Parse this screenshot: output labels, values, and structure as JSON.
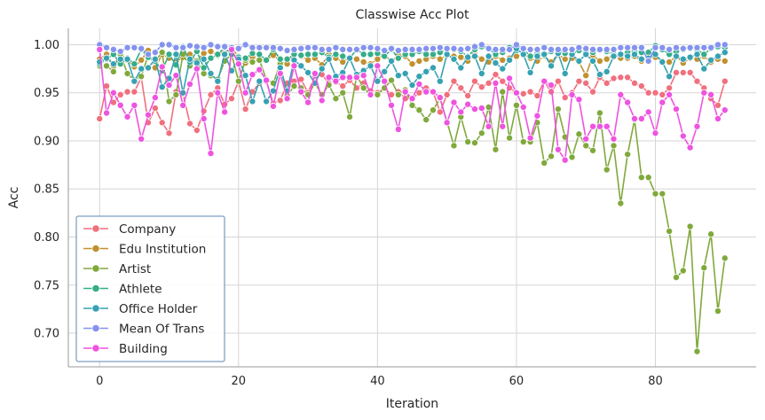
{
  "chart_data": {
    "type": "line",
    "title": "Classwise Acc Plot",
    "xlabel": "Iteration",
    "ylabel": "Acc",
    "xlim": [
      -4.5,
      94.5
    ],
    "ylim": [
      0.665,
      1.017
    ],
    "xticks": [
      0,
      20,
      40,
      60,
      80
    ],
    "yticks": [
      0.7,
      0.75,
      0.8,
      0.85,
      0.9,
      0.95,
      1.0
    ],
    "grid": true,
    "legend_position": "lower-left",
    "x": [
      0,
      1,
      2,
      3,
      4,
      5,
      6,
      7,
      8,
      9,
      10,
      11,
      12,
      13,
      14,
      15,
      16,
      17,
      18,
      19,
      20,
      21,
      22,
      23,
      24,
      25,
      26,
      27,
      28,
      29,
      30,
      31,
      32,
      33,
      34,
      35,
      36,
      37,
      38,
      39,
      40,
      41,
      42,
      43,
      44,
      45,
      46,
      47,
      48,
      49,
      50,
      51,
      52,
      53,
      54,
      55,
      56,
      57,
      58,
      59,
      60,
      61,
      62,
      63,
      64,
      65,
      66,
      67,
      68,
      69,
      70,
      71,
      72,
      73,
      74,
      75,
      76,
      77,
      78,
      79,
      80,
      81,
      82,
      83,
      84,
      85,
      86,
      87,
      88,
      89,
      90
    ],
    "series": [
      {
        "name": "Company",
        "color": "#f0707e",
        "values": [
          0.923,
          0.957,
          0.94,
          0.948,
          0.951,
          0.951,
          0.966,
          0.919,
          0.934,
          0.919,
          0.908,
          0.951,
          0.949,
          0.918,
          0.911,
          0.931,
          0.948,
          0.955,
          0.938,
          0.944,
          0.962,
          0.933,
          0.951,
          0.96,
          0.962,
          0.939,
          0.942,
          0.96,
          0.962,
          0.964,
          0.95,
          0.968,
          0.969,
          0.96,
          0.961,
          0.957,
          0.963,
          0.955,
          0.96,
          0.952,
          0.95,
          0.955,
          0.948,
          0.951,
          0.944,
          0.944,
          0.95,
          0.955,
          0.951,
          0.93,
          0.948,
          0.962,
          0.955,
          0.947,
          0.962,
          0.956,
          0.96,
          0.969,
          0.962,
          0.955,
          0.95,
          0.949,
          0.951,
          0.947,
          0.962,
          0.951,
          0.962,
          0.945,
          0.95,
          0.962,
          0.96,
          0.951,
          0.966,
          0.96,
          0.965,
          0.966,
          0.966,
          0.96,
          0.957,
          0.95,
          0.95,
          0.948,
          0.955,
          0.971,
          0.971,
          0.971,
          0.962,
          0.955,
          0.944,
          0.937,
          0.962
        ]
      },
      {
        "name": "Edu Institution",
        "color": "#c0912f",
        "values": [
          0.985,
          0.99,
          0.978,
          0.99,
          0.984,
          0.977,
          0.984,
          0.994,
          0.976,
          0.99,
          0.986,
          0.982,
          0.987,
          0.99,
          0.983,
          0.991,
          0.993,
          0.989,
          0.994,
          0.996,
          0.988,
          0.981,
          0.987,
          0.985,
          0.984,
          0.989,
          0.983,
          0.98,
          0.992,
          0.988,
          0.984,
          0.986,
          0.979,
          0.99,
          0.986,
          0.982,
          0.987,
          0.985,
          0.982,
          0.98,
          0.985,
          0.99,
          0.982,
          0.989,
          0.988,
          0.98,
          0.983,
          0.985,
          0.988,
          0.985,
          0.989,
          0.988,
          0.987,
          0.983,
          0.99,
          0.985,
          0.982,
          0.988,
          0.984,
          0.986,
          0.988,
          0.99,
          0.986,
          0.983,
          0.988,
          0.982,
          0.99,
          0.985,
          0.986,
          0.982,
          0.968,
          0.989,
          0.983,
          0.985,
          0.99,
          0.986,
          0.986,
          0.988,
          0.983,
          0.986,
          0.987,
          0.983,
          0.982,
          0.988,
          0.981,
          0.986,
          0.985,
          0.988,
          0.982,
          0.985,
          0.983
        ]
      },
      {
        "name": "Artist",
        "color": "#80a93c",
        "values": [
          0.978,
          0.978,
          0.972,
          0.99,
          0.97,
          0.963,
          0.967,
          0.989,
          0.983,
          0.992,
          0.941,
          0.948,
          0.99,
          0.978,
          0.983,
          0.97,
          0.968,
          0.964,
          0.983,
          0.99,
          0.962,
          0.984,
          0.982,
          0.984,
          0.964,
          0.96,
          0.98,
          0.947,
          0.957,
          0.955,
          0.948,
          0.96,
          0.948,
          0.958,
          0.944,
          0.95,
          0.925,
          0.968,
          0.955,
          0.948,
          0.948,
          0.955,
          0.963,
          0.948,
          0.953,
          0.937,
          0.932,
          0.922,
          0.932,
          0.944,
          0.92,
          0.895,
          0.925,
          0.899,
          0.898,
          0.908,
          0.935,
          0.891,
          0.951,
          0.903,
          0.937,
          0.899,
          0.899,
          0.919,
          0.877,
          0.884,
          0.933,
          0.904,
          0.883,
          0.907,
          0.895,
          0.89,
          0.929,
          0.87,
          0.895,
          0.835,
          0.886,
          0.922,
          0.862,
          0.862,
          0.845,
          0.845,
          0.806,
          0.758,
          0.765,
          0.811,
          0.681,
          0.768,
          0.803,
          0.723,
          0.778
        ]
      },
      {
        "name": "Athlete",
        "color": "#34ad88",
        "values": [
          0.98,
          0.985,
          0.99,
          0.98,
          0.986,
          0.98,
          0.995,
          0.987,
          0.983,
          0.973,
          0.99,
          0.979,
          0.998,
          0.982,
          0.993,
          0.976,
          0.986,
          0.99,
          0.997,
          0.99,
          0.987,
          0.986,
          0.991,
          0.99,
          0.984,
          0.995,
          0.985,
          0.985,
          0.99,
          0.989,
          0.99,
          0.99,
          0.992,
          0.987,
          0.99,
          0.988,
          0.986,
          0.995,
          0.99,
          0.99,
          0.991,
          0.988,
          0.995,
          0.986,
          0.99,
          0.99,
          0.993,
          0.99,
          0.99,
          0.992,
          0.995,
          0.995,
          0.993,
          0.988,
          0.995,
          0.998,
          0.996,
          0.99,
          0.992,
          0.997,
          0.994,
          0.995,
          0.988,
          0.991,
          0.989,
          0.993,
          0.995,
          0.991,
          0.99,
          0.994,
          0.992,
          0.992,
          0.995,
          0.993,
          0.99,
          0.99,
          0.992,
          0.994,
          0.992,
          0.992,
          0.999,
          0.995,
          0.99,
          0.993,
          0.995,
          0.996,
          0.995,
          0.99,
          0.996,
          0.998,
          0.997
        ]
      },
      {
        "name": "Office Holder",
        "color": "#36a2b3",
        "values": [
          0.982,
          0.986,
          0.98,
          0.985,
          0.985,
          0.962,
          0.975,
          0.976,
          0.985,
          0.956,
          0.965,
          0.99,
          0.95,
          0.985,
          0.981,
          0.985,
          0.97,
          0.962,
          0.99,
          0.973,
          0.985,
          0.968,
          0.941,
          0.962,
          0.941,
          0.952,
          0.976,
          0.952,
          0.984,
          0.978,
          0.971,
          0.96,
          0.975,
          0.985,
          0.967,
          0.971,
          0.986,
          0.969,
          0.973,
          0.978,
          0.962,
          0.972,
          0.983,
          0.968,
          0.97,
          0.958,
          0.967,
          0.972,
          0.976,
          0.962,
          0.99,
          0.985,
          0.976,
          0.987,
          0.988,
          0.97,
          0.988,
          0.981,
          0.975,
          0.984,
          0.996,
          0.99,
          0.971,
          0.988,
          0.99,
          0.978,
          0.991,
          0.97,
          0.99,
          0.983,
          0.99,
          0.983,
          0.969,
          0.972,
          0.988,
          0.99,
          0.988,
          0.99,
          0.985,
          0.986,
          0.99,
          0.982,
          0.967,
          0.988,
          0.985,
          0.987,
          0.99,
          0.975,
          0.984,
          0.988,
          0.992
        ]
      },
      {
        "name": "Mean Of Trans",
        "color": "#8493ee",
        "values": [
          1.0,
          0.997,
          0.995,
          0.993,
          0.997,
          0.997,
          0.996,
          0.99,
          0.992,
          1.0,
          1.0,
          0.997,
          0.997,
          0.999,
          0.998,
          0.997,
          1.0,
          0.998,
          0.998,
          0.997,
          0.996,
          1.0,
          0.997,
          0.997,
          0.997,
          0.997,
          0.996,
          0.994,
          0.995,
          0.996,
          0.997,
          0.997,
          0.995,
          0.995,
          0.997,
          0.995,
          0.995,
          0.995,
          0.997,
          0.997,
          0.996,
          0.994,
          0.996,
          0.994,
          0.995,
          0.995,
          0.995,
          0.996,
          0.996,
          0.997,
          0.996,
          0.996,
          0.995,
          0.996,
          0.998,
          1.0,
          0.996,
          0.995,
          0.995,
          0.995,
          1.0,
          0.996,
          0.995,
          0.995,
          0.997,
          0.995,
          0.995,
          0.995,
          0.995,
          0.997,
          0.996,
          0.995,
          0.995,
          0.995,
          0.995,
          0.997,
          0.997,
          0.997,
          0.997,
          0.983,
          0.997,
          0.997,
          0.995,
          0.997,
          0.996,
          0.997,
          0.997,
          0.997,
          0.997,
          1.0,
          1.0
        ]
      },
      {
        "name": "Building",
        "color": "#ee54e0",
        "values": [
          0.995,
          0.929,
          0.95,
          0.937,
          0.925,
          0.937,
          0.902,
          0.927,
          0.945,
          0.977,
          0.958,
          0.968,
          0.937,
          0.959,
          0.975,
          0.923,
          0.887,
          0.95,
          0.93,
          0.995,
          0.98,
          0.95,
          0.969,
          0.974,
          0.963,
          0.936,
          0.97,
          0.944,
          0.978,
          0.951,
          0.94,
          0.97,
          0.942,
          0.966,
          0.962,
          0.966,
          0.966,
          0.966,
          0.968,
          0.948,
          0.978,
          0.962,
          0.937,
          0.912,
          0.951,
          0.944,
          0.959,
          0.951,
          0.951,
          0.945,
          0.919,
          0.94,
          0.93,
          0.938,
          0.933,
          0.934,
          0.915,
          0.96,
          0.915,
          0.965,
          0.95,
          0.935,
          0.903,
          0.926,
          0.962,
          0.958,
          0.891,
          0.88,
          0.948,
          0.943,
          0.902,
          0.915,
          0.915,
          0.915,
          0.902,
          0.948,
          0.94,
          0.923,
          0.923,
          0.93,
          0.908,
          0.94,
          0.948,
          0.933,
          0.905,
          0.893,
          0.915,
          0.95,
          0.948,
          0.923,
          0.932
        ]
      }
    ]
  }
}
